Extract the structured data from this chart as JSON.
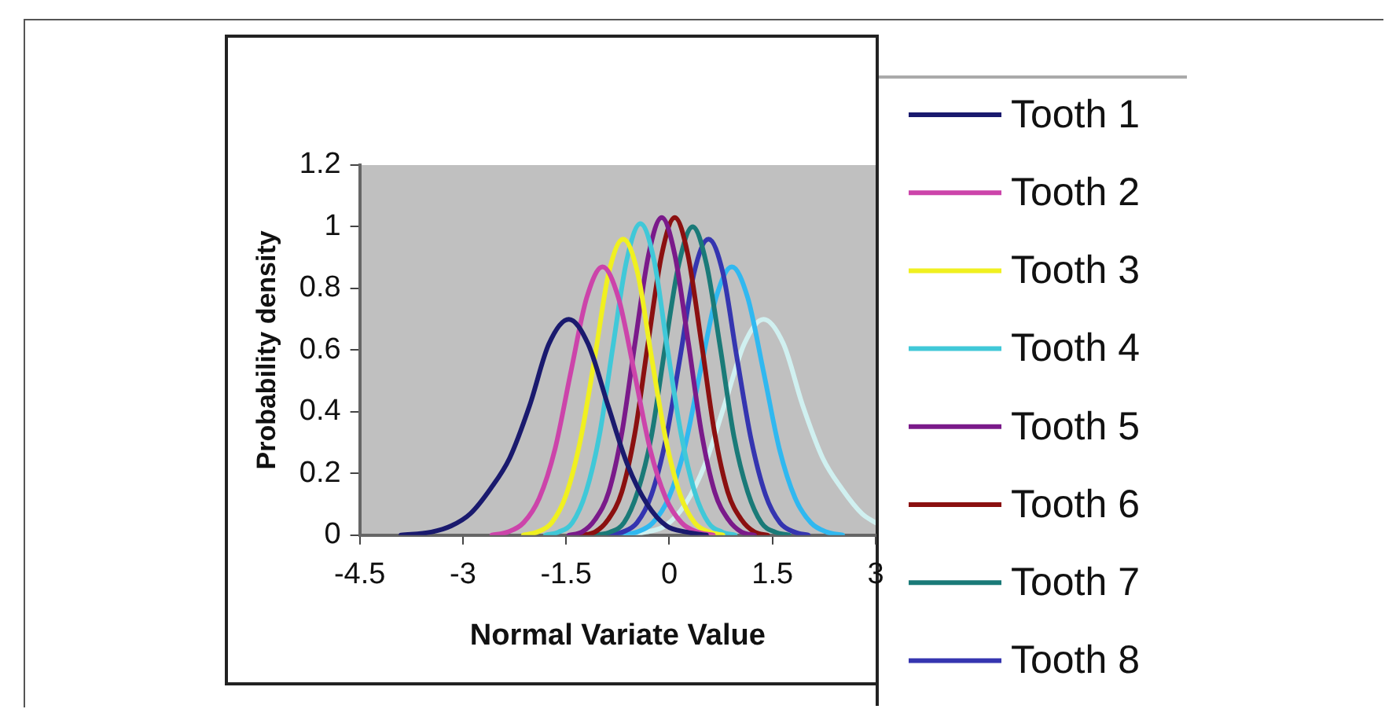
{
  "chart_data": {
    "type": "line",
    "xlabel": "Normal Variate Value",
    "ylabel": "Probability density",
    "xlim": [
      -4.5,
      3
    ],
    "xticks": [
      -4.5,
      -3,
      -1.5,
      0,
      1.5,
      3
    ],
    "ylim": [
      0,
      1.2
    ],
    "yticks": [
      0,
      0.2,
      0.4,
      0.6,
      0.8,
      1,
      1.2
    ],
    "grid": false,
    "legend": "right",
    "marker": "none",
    "line_style": "solid",
    "series": [
      {
        "name": "Tooth 1",
        "color": "#1a1a6e",
        "x": [
          -3.9,
          -3.46,
          -3.17,
          -2.89,
          -2.6,
          -2.32,
          -2.03,
          -1.75,
          -1.46,
          -1.18,
          -0.89,
          -0.61,
          -0.32,
          -0.04,
          0.25,
          0.54
        ],
        "values": [
          0,
          0.01,
          0.03,
          0.07,
          0.15,
          0.25,
          0.42,
          0.62,
          0.7,
          0.62,
          0.42,
          0.23,
          0.1,
          0.03,
          0.01,
          0
        ]
      },
      {
        "name": "Tooth 2",
        "color": "#cc44aa",
        "x": [
          -2.58,
          -2.35,
          -2.12,
          -1.89,
          -1.66,
          -1.43,
          -1.2,
          -0.97,
          -0.74,
          -0.51,
          -0.28,
          -0.05,
          0.18,
          0.41,
          0.64
        ],
        "values": [
          0,
          0.01,
          0.04,
          0.12,
          0.28,
          0.53,
          0.77,
          0.87,
          0.77,
          0.53,
          0.28,
          0.12,
          0.04,
          0.01,
          0
        ]
      },
      {
        "name": "Tooth 3",
        "color": "#f0f020",
        "x": [
          -2.12,
          -1.92,
          -1.71,
          -1.5,
          -1.29,
          -1.08,
          -0.88,
          -0.67,
          -0.46,
          -0.26,
          -0.05,
          0.16,
          0.37,
          0.58,
          0.78
        ],
        "values": [
          0,
          0.01,
          0.04,
          0.13,
          0.31,
          0.58,
          0.85,
          0.96,
          0.85,
          0.58,
          0.31,
          0.13,
          0.04,
          0.01,
          0
        ]
      },
      {
        "name": "Tooth 4",
        "color": "#40c8d8",
        "x": [
          -1.8,
          -1.61,
          -1.41,
          -1.21,
          -1.01,
          -0.82,
          -0.62,
          -0.42,
          -0.22,
          -0.03,
          0.17,
          0.37,
          0.57,
          0.77,
          0.96
        ],
        "values": [
          0,
          0.01,
          0.04,
          0.14,
          0.33,
          0.61,
          0.89,
          1.01,
          0.89,
          0.61,
          0.33,
          0.14,
          0.04,
          0.01,
          0
        ]
      },
      {
        "name": "Tooth 5",
        "color": "#7a1a8a",
        "x": [
          -1.46,
          -1.27,
          -1.08,
          -0.88,
          -0.69,
          -0.5,
          -0.3,
          -0.11,
          0.08,
          0.28,
          0.47,
          0.66,
          0.86,
          1.05,
          1.24
        ],
        "values": [
          0,
          0.01,
          0.05,
          0.14,
          0.33,
          0.62,
          0.91,
          1.03,
          0.91,
          0.62,
          0.33,
          0.14,
          0.05,
          0.01,
          0
        ]
      },
      {
        "name": "Tooth 6",
        "color": "#8b1010",
        "x": [
          -1.27,
          -1.08,
          -0.89,
          -0.69,
          -0.5,
          -0.31,
          -0.11,
          0.08,
          0.27,
          0.47,
          0.66,
          0.85,
          1.05,
          1.24,
          1.43
        ],
        "values": [
          0,
          0.01,
          0.05,
          0.14,
          0.33,
          0.62,
          0.91,
          1.03,
          0.91,
          0.62,
          0.33,
          0.14,
          0.05,
          0.01,
          0
        ]
      },
      {
        "name": "Tooth 7",
        "color": "#1a7a78",
        "x": [
          -1.06,
          -0.86,
          -0.66,
          -0.46,
          -0.26,
          -0.06,
          0.14,
          0.34,
          0.54,
          0.74,
          0.94,
          1.14,
          1.34,
          1.54,
          1.74
        ],
        "values": [
          0,
          0.01,
          0.04,
          0.14,
          0.32,
          0.61,
          0.88,
          1,
          0.88,
          0.61,
          0.32,
          0.14,
          0.04,
          0.01,
          0
        ]
      },
      {
        "name": "Tooth 8",
        "color": "#3535b0",
        "x": [
          -0.88,
          -0.68,
          -0.47,
          -0.26,
          -0.05,
          0.16,
          0.36,
          0.57,
          0.78,
          0.98,
          1.19,
          1.4,
          1.61,
          1.82,
          2.02
        ],
        "values": [
          0,
          0.01,
          0.04,
          0.13,
          0.31,
          0.58,
          0.85,
          0.96,
          0.85,
          0.58,
          0.31,
          0.13,
          0.04,
          0.01,
          0
        ]
      },
      {
        "color": "#30b8f0",
        "x": [
          -0.7,
          -0.47,
          -0.24,
          -0.01,
          0.22,
          0.45,
          0.68,
          0.91,
          1.14,
          1.37,
          1.6,
          1.83,
          2.06,
          2.29,
          2.52
        ],
        "values": [
          0,
          0.01,
          0.04,
          0.12,
          0.28,
          0.53,
          0.77,
          0.87,
          0.77,
          0.53,
          0.28,
          0.12,
          0.04,
          0.01,
          0
        ]
      },
      {
        "color": "#d0f0f0",
        "x": [
          -0.63,
          -0.34,
          -0.06,
          0.23,
          0.52,
          0.8,
          1.09,
          1.37,
          1.66,
          1.94,
          2.23,
          2.51,
          2.8,
          3
        ],
        "values": [
          0,
          0.01,
          0.03,
          0.1,
          0.23,
          0.42,
          0.62,
          0.7,
          0.62,
          0.42,
          0.25,
          0.15,
          0.07,
          0.04
        ]
      }
    ]
  }
}
